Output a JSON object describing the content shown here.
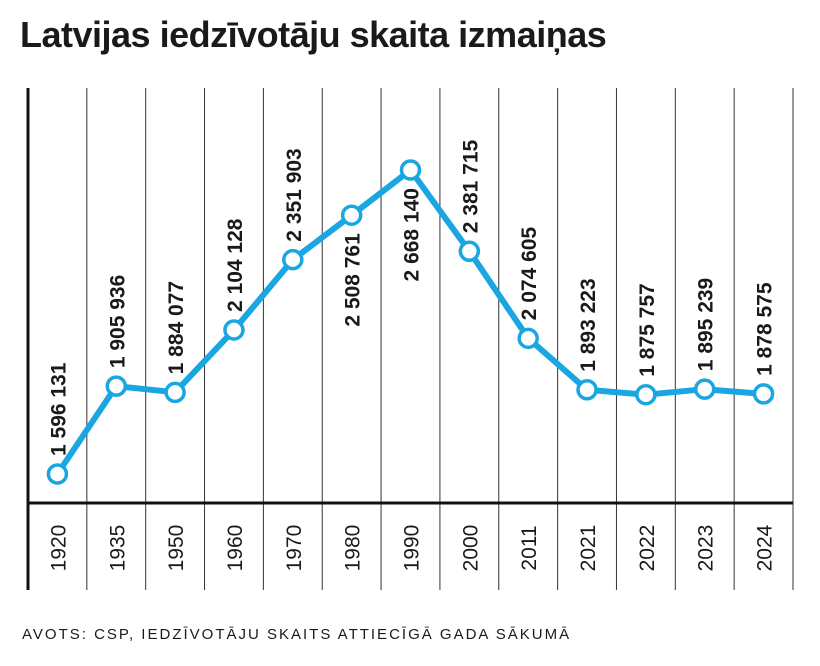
{
  "chart_data": {
    "type": "line",
    "title": "Latvijas iedzīvotāju skaita izmaiņas",
    "source": "AVOTS: CSP, IEDZĪVOTĀJU SKAITS ATTIECĪGĀ GADA SĀKUMĀ",
    "categories": [
      "1920",
      "1935",
      "1950",
      "1960",
      "1970",
      "1980",
      "1990",
      "2000",
      "2011",
      "2021",
      "2022",
      "2023",
      "2024"
    ],
    "values": [
      1596131,
      1905936,
      1884077,
      2104128,
      2351903,
      2508761,
      2668140,
      2381715,
      2074605,
      1893223,
      1875757,
      1895239,
      1878575
    ],
    "labels": [
      "1 596 131",
      "1 905 936",
      "1 884 077",
      "2 104 128",
      "2 351 903",
      "2 508 761",
      "2 668 140",
      "2 381 715",
      "2 074 605",
      "1 893 223",
      "1 875 757",
      "1 895 239",
      "1 878 575"
    ],
    "ylim": [
      1500000,
      2750000
    ],
    "grid": true,
    "colors": {
      "line": "#1aa6e0",
      "text": "#1a1a1a",
      "grid": "#333333"
    }
  }
}
